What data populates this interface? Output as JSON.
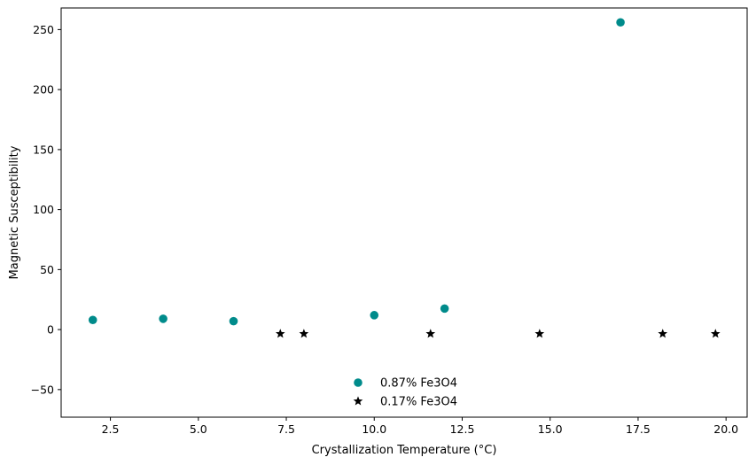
{
  "chart_data": {
    "type": "scatter",
    "xlabel": "Crystallization Temperature (°C)",
    "ylabel": "Magnetic Susceptibility",
    "xlim": [
      1.1,
      20.6
    ],
    "ylim": [
      -73,
      268
    ],
    "xticks": [
      2.5,
      5.0,
      7.5,
      10.0,
      12.5,
      15.0,
      17.5,
      20.0
    ],
    "xtick_labels": [
      "2.5",
      "5.0",
      "7.5",
      "10.0",
      "12.5",
      "15.0",
      "17.5",
      "20.0"
    ],
    "yticks": [
      -50,
      0,
      50,
      100,
      150,
      200,
      250
    ],
    "ytick_labels": [
      "−50",
      "0",
      "50",
      "100",
      "150",
      "200",
      "250"
    ],
    "grid": false,
    "legend_position": "bottom-center",
    "series": [
      {
        "name": "0.87% Fe3O4",
        "marker": "circle",
        "color": "#008b8b",
        "x": [
          2,
          4,
          6,
          10,
          12,
          17
        ],
        "y": [
          8,
          9,
          7,
          12,
          17.5,
          256
        ]
      },
      {
        "name": "0.17% Fe3O4",
        "marker": "star",
        "color": "#000000",
        "x": [
          7.33,
          8,
          11.6,
          14.7,
          18.2,
          19.7
        ],
        "y": [
          -3.5,
          -3.5,
          -3.5,
          -3.5,
          -3.5,
          -3.5
        ]
      }
    ]
  }
}
